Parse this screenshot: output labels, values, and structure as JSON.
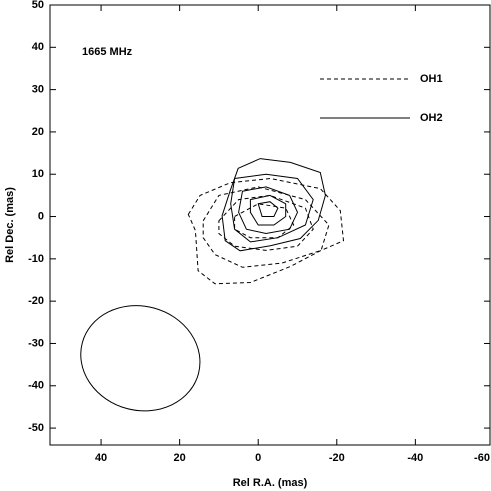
{
  "chart_data": {
    "type": "contour",
    "annotation": "1665 MHz",
    "x_label": "Rel R.A. (mas)",
    "y_label": "Rel Dec. (mas)",
    "xlim": [
      53,
      -59
    ],
    "ylim": [
      -54,
      50
    ],
    "xticks": [
      40,
      20,
      0,
      -20,
      -40,
      -60
    ],
    "yticks": [
      50,
      40,
      30,
      20,
      10,
      0,
      -10,
      -20,
      -30,
      -40,
      -50
    ],
    "series": [
      {
        "name": "OH1",
        "color": "#000000",
        "style": "dashed",
        "contours": [
          {
            "x": [
              17.8,
              14.8,
              7.1,
              -3.1,
              -15.8,
              -20.9,
              -21.7,
              -15.8,
              -8.2,
              2,
              11,
              15.3,
              16
            ],
            "y": [
              0.5,
              5,
              8,
              9,
              6.6,
              1.4,
              -5.7,
              -8.1,
              -11.8,
              -15.6,
              -15.9,
              -12.8,
              -3.3
            ]
          },
          {
            "x": [
              14,
              10,
              0,
              -12,
              -18,
              -16,
              -6,
              4,
              11,
              14
            ],
            "y": [
              -1,
              5,
              7,
              4,
              -2,
              -8,
              -11,
              -12,
              -9,
              -5
            ]
          },
          {
            "x": [
              10,
              5,
              -3,
              -12,
              -14,
              -10,
              -2,
              6,
              10
            ],
            "y": [
              -1,
              4,
              5,
              2,
              -3,
              -7,
              -8,
              -7,
              -4
            ]
          },
          {
            "x": [
              6,
              0,
              -7,
              -9,
              -5,
              2,
              6
            ],
            "y": [
              0,
              3,
              2,
              -2,
              -5,
              -5,
              -3
            ]
          }
        ]
      },
      {
        "name": "OH2",
        "color": "#000000",
        "style": "solid",
        "contours": [
          {
            "x": [
              5.1,
              -0.5,
              -8.2,
              -15.8,
              -17.1,
              -15.3,
              -10.7,
              -3.1,
              4.6,
              8.4,
              9.2,
              7.1
            ],
            "y": [
              11.4,
              13.7,
              12.8,
              10.4,
              5,
              -0.9,
              -5.2,
              -6.9,
              -8.1,
              -5.7,
              0.2,
              6.2
            ]
          },
          {
            "x": [
              6,
              -2,
              -10,
              -14,
              -12,
              -5,
              2,
              6,
              7
            ],
            "y": [
              9,
              10,
              9,
              4,
              -2,
              -5,
              -6,
              -3,
              3
            ]
          },
          {
            "x": [
              4,
              -2,
              -8,
              -10,
              -8,
              -2,
              3,
              5
            ],
            "y": [
              6,
              7,
              5,
              1,
              -3,
              -4,
              -3,
              1
            ]
          },
          {
            "x": [
              2,
              -3,
              -7,
              -7,
              -4,
              0,
              2
            ],
            "y": [
              4,
              5,
              3,
              0,
              -2,
              -2,
              1
            ]
          },
          {
            "x": [
              0,
              -3,
              -5,
              -4,
              -1
            ],
            "y": [
              3,
              3.5,
              2,
              0,
              0
            ]
          }
        ]
      }
    ],
    "beam": {
      "x": 30,
      "y": -33.5,
      "width": 30.6,
      "height": 24.6,
      "angle": 15
    }
  }
}
